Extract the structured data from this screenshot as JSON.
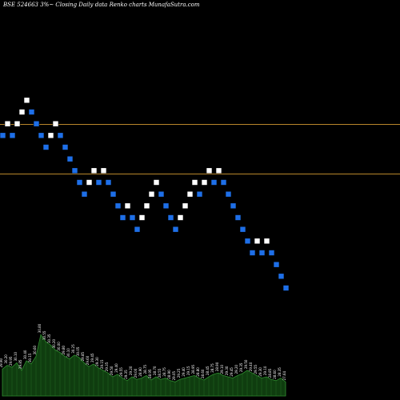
{
  "chart_data": {
    "type": "renko",
    "title": "BSE 524663 3%~  Closing Daily data  Renko  charts MunafaSutra.com",
    "colors": {
      "background": "#000000",
      "up_brick": "#ffffff",
      "down_brick": "#1e6fe8",
      "reference_line": "#b8862b",
      "volume_fill": "#0f3d0f",
      "volume_stroke": "#2e8b2e",
      "volume_label": "#ffffff"
    },
    "price_range": [
      26.0,
      32.0
    ],
    "reference_lines": [
      30.3,
      29.45
    ],
    "bricks": [
      {
        "dir": "down",
        "value": 30.1
      },
      {
        "dir": "up",
        "value": 30.3
      },
      {
        "dir": "down",
        "value": 30.1
      },
      {
        "dir": "up",
        "value": 30.3
      },
      {
        "dir": "up",
        "value": 30.5
      },
      {
        "dir": "up",
        "value": 30.7
      },
      {
        "dir": "down",
        "value": 30.5
      },
      {
        "dir": "down",
        "value": 30.3
      },
      {
        "dir": "down",
        "value": 30.1
      },
      {
        "dir": "down",
        "value": 29.9
      },
      {
        "dir": "up",
        "value": 30.1
      },
      {
        "dir": "up",
        "value": 30.3
      },
      {
        "dir": "down",
        "value": 30.1
      },
      {
        "dir": "down",
        "value": 29.9
      },
      {
        "dir": "down",
        "value": 29.7
      },
      {
        "dir": "down",
        "value": 29.5
      },
      {
        "dir": "down",
        "value": 29.3
      },
      {
        "dir": "down",
        "value": 29.1
      },
      {
        "dir": "up",
        "value": 29.3
      },
      {
        "dir": "up",
        "value": 29.5
      },
      {
        "dir": "down",
        "value": 29.3
      },
      {
        "dir": "up",
        "value": 29.5
      },
      {
        "dir": "down",
        "value": 29.3
      },
      {
        "dir": "down",
        "value": 29.1
      },
      {
        "dir": "down",
        "value": 28.9
      },
      {
        "dir": "down",
        "value": 28.7
      },
      {
        "dir": "up",
        "value": 28.9
      },
      {
        "dir": "down",
        "value": 28.7
      },
      {
        "dir": "down",
        "value": 28.5
      },
      {
        "dir": "up",
        "value": 28.7
      },
      {
        "dir": "up",
        "value": 28.9
      },
      {
        "dir": "up",
        "value": 29.1
      },
      {
        "dir": "up",
        "value": 29.3
      },
      {
        "dir": "down",
        "value": 29.1
      },
      {
        "dir": "down",
        "value": 28.9
      },
      {
        "dir": "down",
        "value": 28.7
      },
      {
        "dir": "down",
        "value": 28.5
      },
      {
        "dir": "up",
        "value": 28.7
      },
      {
        "dir": "up",
        "value": 28.9
      },
      {
        "dir": "up",
        "value": 29.1
      },
      {
        "dir": "up",
        "value": 29.3
      },
      {
        "dir": "down",
        "value": 29.1
      },
      {
        "dir": "up",
        "value": 29.3
      },
      {
        "dir": "up",
        "value": 29.5
      },
      {
        "dir": "down",
        "value": 29.3
      },
      {
        "dir": "up",
        "value": 29.5
      },
      {
        "dir": "down",
        "value": 29.3
      },
      {
        "dir": "down",
        "value": 29.1
      },
      {
        "dir": "down",
        "value": 28.9
      },
      {
        "dir": "down",
        "value": 28.7
      },
      {
        "dir": "down",
        "value": 28.5
      },
      {
        "dir": "down",
        "value": 28.3
      },
      {
        "dir": "down",
        "value": 28.1
      },
      {
        "dir": "up",
        "value": 28.3
      },
      {
        "dir": "down",
        "value": 28.1
      },
      {
        "dir": "up",
        "value": 28.3
      },
      {
        "dir": "down",
        "value": 28.1
      },
      {
        "dir": "down",
        "value": 27.9
      },
      {
        "dir": "down",
        "value": 27.7
      },
      {
        "dir": "down",
        "value": 27.5
      }
    ],
    "volume": {
      "max": 100,
      "values": [
        42,
        48,
        45,
        52,
        40,
        55,
        50,
        62,
        96,
        85,
        80,
        72,
        68,
        62,
        58,
        64,
        60,
        52,
        46,
        50,
        44,
        40,
        36,
        30,
        34,
        28,
        24,
        30,
        26,
        28,
        32,
        25,
        30,
        26,
        28,
        24,
        22,
        26,
        28,
        30,
        32,
        28,
        25,
        30,
        34,
        36,
        32,
        30,
        28,
        32,
        35,
        40,
        36,
        32,
        28,
        30,
        26,
        24,
        28,
        22
      ]
    },
    "volume_labels": [
      "29.90",
      "30.20",
      "29.95",
      "30.10",
      "29.85",
      "30.40",
      "30.15",
      "30.60",
      "30.80",
      "30.55",
      "30.35",
      "30.20",
      "30.00",
      "29.80",
      "30.10",
      "30.25",
      "30.05",
      "29.85",
      "29.60",
      "29.45",
      "29.30",
      "29.15",
      "29.35",
      "29.50",
      "29.40",
      "29.55",
      "29.35",
      "29.20",
      "29.00",
      "28.90",
      "28.75",
      "28.95",
      "28.70",
      "28.55",
      "28.75",
      "28.90",
      "29.05",
      "29.25",
      "29.40",
      "29.15",
      "28.95",
      "28.80",
      "28.60",
      "28.45",
      "28.75",
      "28.90",
      "29.10",
      "29.30",
      "29.45",
      "29.20",
      "29.35",
      "29.50",
      "29.40",
      "29.55",
      "29.30",
      "29.10",
      "28.85",
      "28.60",
      "28.35",
      "27.64"
    ]
  }
}
